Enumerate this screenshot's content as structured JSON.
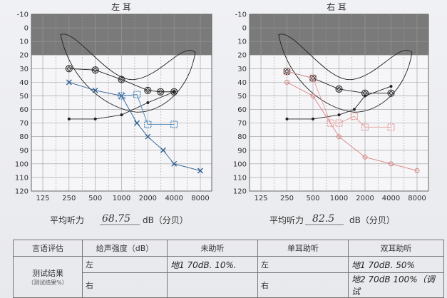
{
  "chart_data": [
    {
      "type": "line",
      "title": "左 耳",
      "x_ticks": [
        "125",
        "250",
        "500",
        "1000",
        "2000",
        "4000",
        "8000"
      ],
      "y_ticks": [
        "-10",
        "0",
        "10",
        "20",
        "30",
        "40",
        "50",
        "60",
        "70",
        "80",
        "90",
        "100",
        "110",
        "120"
      ],
      "ylim": [
        -10,
        120
      ],
      "y_inverted": true,
      "shaded_band": [
        -10,
        20
      ],
      "series": [
        {
          "key": "unaided",
          "color": "#222222",
          "marker": "dot",
          "x": [
            250,
            500,
            1000,
            2000,
            4000
          ],
          "y": [
            67,
            67,
            64,
            55,
            47
          ]
        },
        {
          "key": "aided-single",
          "color": "#222222",
          "marker": "diamond",
          "x": [
            250,
            500,
            1000,
            2000,
            2800,
            4000
          ],
          "y": [
            30,
            31,
            38,
            46,
            47,
            47
          ]
        },
        {
          "key": "bone-x",
          "color": "#2a5d8f",
          "marker": "x",
          "x": [
            250,
            500,
            1000,
            1500,
            2000,
            3000,
            4000,
            8000
          ],
          "y": [
            40,
            46,
            50,
            70,
            80,
            90,
            100,
            105
          ]
        },
        {
          "key": "aided-binaural",
          "color": "#4a86b8",
          "marker": "square",
          "x": [
            1000,
            1500,
            2000,
            4000
          ],
          "y": [
            50,
            49,
            71,
            71
          ]
        }
      ],
      "average_label": "平均听力",
      "average_value": "68.75",
      "average_unit": "dB（分贝）"
    },
    {
      "type": "line",
      "title": "右 耳",
      "x_ticks": [
        "125",
        "250",
        "500",
        "1000",
        "2000",
        "4000",
        "8000"
      ],
      "y_ticks": [
        "-10",
        "0",
        "10",
        "20",
        "30",
        "40",
        "50",
        "60",
        "70",
        "80",
        "90",
        "100",
        "110",
        "120"
      ],
      "ylim": [
        -10,
        120
      ],
      "y_inverted": true,
      "shaded_band": [
        -10,
        20
      ],
      "series": [
        {
          "key": "unaided",
          "color": "#222222",
          "marker": "dot",
          "x": [
            250,
            500,
            1000,
            1500,
            2000,
            4000
          ],
          "y": [
            67,
            67,
            64,
            60,
            50,
            43
          ]
        },
        {
          "key": "aided-single",
          "color": "#222222",
          "marker": "diamond",
          "x": [
            250,
            500,
            1000,
            2000,
            4000
          ],
          "y": [
            32,
            37,
            45,
            48,
            48
          ]
        },
        {
          "key": "bone-red",
          "color": "#d98080",
          "marker": "circle",
          "x": [
            250,
            500,
            1000,
            2000,
            4000,
            8000
          ],
          "y": [
            40,
            50,
            80,
            95,
            100,
            105
          ]
        },
        {
          "key": "aided-red",
          "color": "#e59a9a",
          "marker": "square",
          "x": [
            250,
            500,
            800,
            1000,
            1500,
            2000,
            4000
          ],
          "y": [
            32,
            37,
            70,
            70,
            65,
            73,
            73
          ]
        }
      ],
      "average_label": "平均听力",
      "average_value": "82.5",
      "average_unit": "dB（分贝）"
    }
  ],
  "table": {
    "col_eval": "言语评估",
    "col_intensity": "给声强度（dB）",
    "col_unaided": "未助听",
    "col_single": "单耳助听",
    "col_binaural": "双耳助听",
    "row_label": "测试结果",
    "row_sub": "（测试结果%）",
    "side_left": "左",
    "side_right": "右",
    "unaided_left": "地1 70dB. 10%.",
    "single_left": "左",
    "single_right": "右",
    "binaural_1": "地1 70dB. 50%",
    "binaural_2": "地2 70dB 100%（调试"
  }
}
